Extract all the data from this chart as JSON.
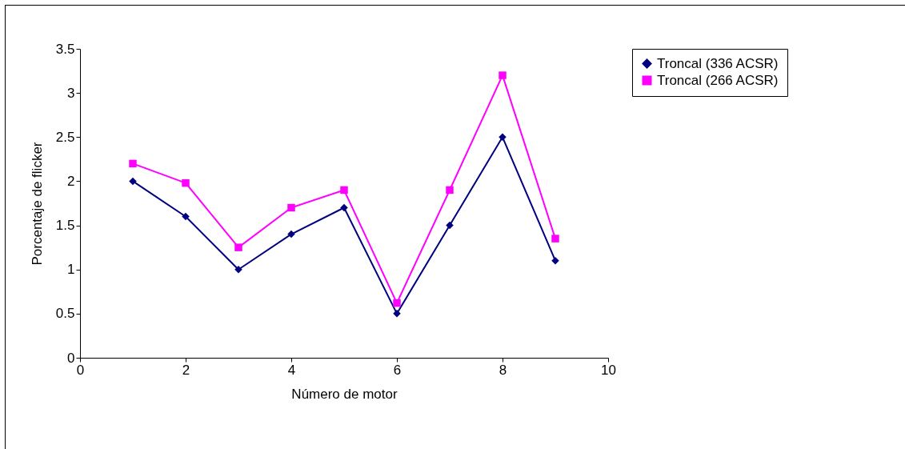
{
  "chart_data": {
    "type": "line",
    "xlabel": "Número de motor",
    "ylabel": "Porcentaje de flicker",
    "x": [
      1,
      2,
      3,
      4,
      5,
      6,
      7,
      8,
      9
    ],
    "series": [
      {
        "name": "Troncal (336 ACSR)",
        "color": "#000080",
        "marker": "diamond",
        "values": [
          2.0,
          1.6,
          1.0,
          1.4,
          1.7,
          0.5,
          1.5,
          2.5,
          1.1
        ]
      },
      {
        "name": "Troncal (266 ACSR)",
        "color": "#ff00ff",
        "marker": "square",
        "values": [
          2.2,
          1.98,
          1.25,
          1.7,
          1.9,
          0.62,
          1.9,
          3.2,
          1.35
        ]
      }
    ],
    "xlim": [
      0,
      10
    ],
    "xticks": [
      0,
      2,
      4,
      6,
      8,
      10
    ],
    "ylim": [
      0,
      3.5
    ],
    "yticks": [
      0,
      0.5,
      1,
      1.5,
      2,
      2.5,
      3,
      3.5
    ],
    "grid": false,
    "legend": "right"
  }
}
